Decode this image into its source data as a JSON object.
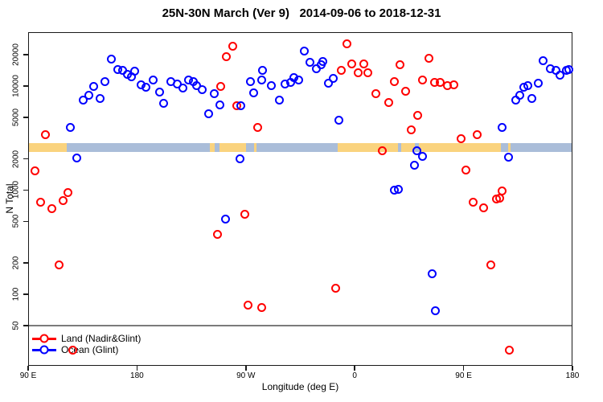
{
  "title": "25N-30N March (Ver 9)   2014-09-06 to 2018-12-31",
  "axes": {
    "y_label": "N Total",
    "x_label": "Longitude (deg E)"
  },
  "legend": [
    {
      "label": "Land (Nadir&Glint)",
      "color": "#ff0000"
    },
    {
      "label": "Ocean (Glint)",
      "color": "#0000ff"
    }
  ],
  "colors": {
    "land_band": "#fad37e",
    "ocean_band": "#aabdd9",
    "reference_line": "#7b7b7b"
  },
  "chart_data": {
    "type": "scatter",
    "title": "25N-30N March (Ver 9)   2014-09-06 to 2018-12-31",
    "xlabel": "Longitude (deg E)",
    "ylabel": "N Total",
    "x_axis": {
      "note": "x values are degrees east of the left edge; axis starts at 90E and spans 450 deg (wraps past 180 and 0)",
      "span_deg": 450,
      "tick_positions": [
        0,
        90,
        180,
        270,
        360,
        450
      ],
      "tick_labels": [
        "90 E",
        "180",
        "90 W",
        "0",
        "90 E",
        "180"
      ]
    },
    "y_axis": {
      "scale": "log10",
      "ticks": [
        50,
        100,
        200,
        500,
        1000,
        2000,
        5000,
        10000,
        20000
      ],
      "range_approx": [
        20,
        33000
      ]
    },
    "reference_line_n": 50,
    "land_ocean_band": {
      "n_top": 2850,
      "n_bottom": 2330,
      "segments": [
        {
          "surface": "land",
          "from": 0,
          "to": 32
        },
        {
          "surface": "ocean",
          "from": 32,
          "to": 150
        },
        {
          "surface": "land",
          "from": 150,
          "to": 154
        },
        {
          "surface": "ocean",
          "from": 154,
          "to": 158
        },
        {
          "surface": "land",
          "from": 158,
          "to": 180
        },
        {
          "surface": "ocean",
          "from": 180,
          "to": 187
        },
        {
          "surface": "land",
          "from": 187,
          "to": 189
        },
        {
          "surface": "ocean",
          "from": 189,
          "to": 256
        },
        {
          "surface": "land",
          "from": 256,
          "to": 306
        },
        {
          "surface": "ocean",
          "from": 306,
          "to": 308.5
        },
        {
          "surface": "land",
          "from": 308.5,
          "to": 320
        },
        {
          "surface": "ocean",
          "from": 320,
          "to": 323
        },
        {
          "surface": "land",
          "from": 323,
          "to": 391
        },
        {
          "surface": "ocean",
          "from": 391,
          "to": 397
        },
        {
          "surface": "land",
          "from": 397,
          "to": 399
        },
        {
          "surface": "ocean",
          "from": 399,
          "to": 450
        }
      ]
    },
    "series": [
      {
        "name": "Land (Nadir&Glint)",
        "color": "#ff0000",
        "points": [
          [
            5.5,
            1540
          ],
          [
            10.6,
            770
          ],
          [
            14.6,
            3400
          ],
          [
            19.5,
            670
          ],
          [
            25.5,
            190
          ],
          [
            28.8,
            800
          ],
          [
            33.2,
            950
          ],
          [
            36.6,
            29
          ],
          [
            156.3,
            375
          ],
          [
            159.1,
            9900
          ],
          [
            164,
            19300
          ],
          [
            169.1,
            24000
          ],
          [
            172.4,
            6500
          ],
          [
            179.1,
            590
          ],
          [
            181.7,
            79
          ],
          [
            189.5,
            4000
          ],
          [
            192.8,
            75
          ],
          [
            254.5,
            115
          ],
          [
            258.8,
            14100
          ],
          [
            263.3,
            25500
          ],
          [
            267.8,
            16400
          ],
          [
            273.1,
            13300
          ],
          [
            277.5,
            16400
          ],
          [
            281.1,
            13300
          ],
          [
            287.7,
            8400
          ],
          [
            293.1,
            2400
          ],
          [
            298.1,
            7000
          ],
          [
            302.5,
            11100
          ],
          [
            307.6,
            16100
          ],
          [
            312,
            8900
          ],
          [
            316.9,
            3800
          ],
          [
            321.8,
            5200
          ],
          [
            326.3,
            11500
          ],
          [
            331.3,
            18500
          ],
          [
            335.8,
            10900
          ],
          [
            340.9,
            10900
          ],
          [
            346.9,
            10000
          ],
          [
            351.9,
            10200
          ],
          [
            357.9,
            3100
          ],
          [
            362,
            1570
          ],
          [
            368,
            770
          ],
          [
            371.2,
            3400
          ],
          [
            376.3,
            680
          ],
          [
            382.5,
            190
          ],
          [
            387.4,
            820
          ],
          [
            389.6,
            830
          ],
          [
            391.8,
            980
          ],
          [
            397.9,
            29
          ]
        ]
      },
      {
        "name": "Ocean (Glint)",
        "color": "#0000ff",
        "points": [
          [
            34.6,
            4000
          ],
          [
            40.4,
            2030
          ],
          [
            45.2,
            7300
          ],
          [
            49.9,
            8200
          ],
          [
            54.5,
            9900
          ],
          [
            59.2,
            7600
          ],
          [
            63.8,
            11000
          ],
          [
            69.1,
            18000
          ],
          [
            73.8,
            14500
          ],
          [
            77.8,
            14200
          ],
          [
            81.8,
            13000
          ],
          [
            85.1,
            12200
          ],
          [
            88.4,
            14000
          ],
          [
            93.1,
            10200
          ],
          [
            97.1,
            9800
          ],
          [
            103.1,
            11500
          ],
          [
            108.4,
            8700
          ],
          [
            111.7,
            6800
          ],
          [
            117.9,
            11100
          ],
          [
            123,
            10400
          ],
          [
            128.1,
            9600
          ],
          [
            132.5,
            11500
          ],
          [
            136.3,
            11100
          ],
          [
            139.2,
            10000
          ],
          [
            143.6,
            9300
          ],
          [
            149.1,
            5400
          ],
          [
            154.1,
            8400
          ],
          [
            158.4,
            6600
          ],
          [
            162.9,
            530
          ],
          [
            175.1,
            2000
          ],
          [
            175.7,
            6500
          ],
          [
            184,
            11100
          ],
          [
            186.2,
            8600
          ],
          [
            193.3,
            11500
          ],
          [
            194,
            14100
          ],
          [
            201.3,
            10000
          ],
          [
            207.9,
            7300
          ],
          [
            212.3,
            10400
          ],
          [
            216.8,
            10900
          ],
          [
            219.9,
            12000
          ],
          [
            223.4,
            11500
          ],
          [
            228.3,
            21700
          ],
          [
            233.2,
            17000
          ],
          [
            238.2,
            14600
          ],
          [
            242,
            16100
          ],
          [
            243.8,
            17100
          ],
          [
            248.2,
            10700
          ],
          [
            252.2,
            11800
          ],
          [
            257.1,
            4700
          ],
          [
            302.5,
            1000
          ],
          [
            306.3,
            1010
          ],
          [
            319.6,
            1730
          ],
          [
            321.3,
            2400
          ],
          [
            326.3,
            2100
          ],
          [
            334,
            157
          ],
          [
            336.4,
            69
          ],
          [
            391.9,
            4000
          ],
          [
            397.2,
            2070
          ],
          [
            402.9,
            7300
          ],
          [
            406.7,
            8100
          ],
          [
            409.6,
            9800
          ],
          [
            413.4,
            10000
          ],
          [
            416.7,
            7600
          ],
          [
            421.5,
            10700
          ],
          [
            426,
            17500
          ],
          [
            431.7,
            14600
          ],
          [
            436.6,
            14100
          ],
          [
            439.9,
            12800
          ],
          [
            445,
            14100
          ],
          [
            447,
            14400
          ]
        ]
      }
    ]
  }
}
